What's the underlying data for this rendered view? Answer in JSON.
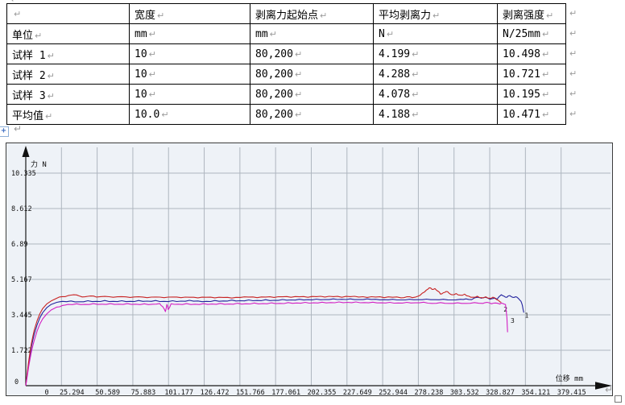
{
  "marks": {
    "pilcrow": "↵",
    "table_handle": "+"
  },
  "table": {
    "paragraph_mark": "↵",
    "headers": [
      "",
      "宽度",
      "剥离力起始点",
      "平均剥离力",
      "剥离强度"
    ],
    "rows": [
      [
        "单位",
        "mm",
        "mm",
        "N",
        "N/25mm"
      ],
      [
        "试样 1",
        "10",
        "80,200",
        "4.199",
        "10.498"
      ],
      [
        "试样 2",
        "10",
        "80,200",
        "4.288",
        "10.721"
      ],
      [
        "试样 3",
        "10",
        "80,200",
        "4.078",
        "10.195"
      ],
      [
        "平均值",
        "10.0",
        "80,200",
        "4.188",
        "10.471"
      ]
    ]
  },
  "chart_data": {
    "type": "line",
    "title": "",
    "xlabel": "位移 mm",
    "ylabel": "力 N",
    "grid": true,
    "legend_position": "none",
    "bg_color": "#eef2f7",
    "grid_color": "#aeb6bf",
    "axis_color": "#1a1a1a",
    "xlim": [
      0,
      396
    ],
    "ylim": [
      0,
      11.2
    ],
    "x_ticks": [
      0,
      25.294,
      50.589,
      75.883,
      101.177,
      126.472,
      151.766,
      177.061,
      202.355,
      227.649,
      252.944,
      278.238,
      303.532,
      328.827,
      354.121,
      379.415
    ],
    "x_tick_labels": [
      "0",
      "25.294",
      "50.589",
      "75.883",
      "101.177",
      "126.472",
      "151.766",
      "177.061",
      "202.355",
      "227.649",
      "252.944",
      "278.238",
      "303.532",
      "328.827",
      "354.121",
      "379.415"
    ],
    "y_ticks": [
      0,
      1.722,
      3.445,
      5.167,
      6.89,
      8.612,
      10.335
    ],
    "y_tick_labels": [
      "0",
      "1.722",
      "3.445",
      "5.167",
      "6.89",
      "8.612",
      "10.335"
    ],
    "series": [
      {
        "name": "试样 1",
        "color": "#23239e",
        "end_label": "1",
        "end_label_xy": [
          355,
          3.3
        ],
        "points": [
          [
            0,
            0
          ],
          [
            1,
            0.55
          ],
          [
            2,
            1.05
          ],
          [
            3,
            1.5
          ],
          [
            4,
            1.9
          ],
          [
            5,
            2.22
          ],
          [
            6,
            2.5
          ],
          [
            8,
            2.95
          ],
          [
            10,
            3.3
          ],
          [
            12,
            3.55
          ],
          [
            15,
            3.8
          ],
          [
            18,
            3.95
          ],
          [
            22,
            4.05
          ],
          [
            26,
            4.1
          ],
          [
            32,
            4.12
          ],
          [
            38,
            4.08
          ],
          [
            44,
            4.13
          ],
          [
            50,
            4.1
          ],
          [
            56,
            4.14
          ],
          [
            62,
            4.1
          ],
          [
            68,
            4.13
          ],
          [
            74,
            4.1
          ],
          [
            80,
            4.14
          ],
          [
            86,
            4.11
          ],
          [
            92,
            4.14
          ],
          [
            98,
            4.1
          ],
          [
            104,
            4.13
          ],
          [
            110,
            4.11
          ],
          [
            116,
            4.15
          ],
          [
            122,
            4.12
          ],
          [
            128,
            4.1
          ],
          [
            134,
            4.14
          ],
          [
            140,
            4.12
          ],
          [
            146,
            4.16
          ],
          [
            152,
            4.13
          ],
          [
            158,
            4.17
          ],
          [
            164,
            4.14
          ],
          [
            170,
            4.18
          ],
          [
            176,
            4.15
          ],
          [
            182,
            4.19
          ],
          [
            188,
            4.17
          ],
          [
            194,
            4.2
          ],
          [
            200,
            4.18
          ],
          [
            206,
            4.21
          ],
          [
            212,
            4.19
          ],
          [
            218,
            4.22
          ],
          [
            224,
            4.2
          ],
          [
            230,
            4.22
          ],
          [
            236,
            4.19
          ],
          [
            242,
            4.22
          ],
          [
            248,
            4.2
          ],
          [
            254,
            4.18
          ],
          [
            260,
            4.2
          ],
          [
            266,
            4.17
          ],
          [
            272,
            4.2
          ],
          [
            278,
            4.18
          ],
          [
            284,
            4.21
          ],
          [
            290,
            4.18
          ],
          [
            296,
            4.2
          ],
          [
            302,
            4.17
          ],
          [
            308,
            4.2
          ],
          [
            312,
            4.22
          ],
          [
            316,
            4.18
          ],
          [
            320,
            4.3
          ],
          [
            323,
            4.25
          ],
          [
            326,
            4.3
          ],
          [
            329,
            4.2
          ],
          [
            332,
            4.25
          ],
          [
            334,
            4.2
          ],
          [
            337,
            4.42
          ],
          [
            339,
            4.35
          ],
          [
            341,
            4.3
          ],
          [
            343,
            4.38
          ],
          [
            345,
            4.3
          ],
          [
            347,
            4.32
          ],
          [
            349,
            4.25
          ],
          [
            351,
            4.1
          ],
          [
            352,
            3.9
          ],
          [
            353,
            3.55
          ]
        ]
      },
      {
        "name": "试样 2",
        "color": "#c82323",
        "end_label": "2",
        "end_label_xy": [
          340,
          3.6
        ],
        "points": [
          [
            0,
            0
          ],
          [
            1,
            0.6
          ],
          [
            2,
            1.15
          ],
          [
            3,
            1.65
          ],
          [
            4,
            2.05
          ],
          [
            5,
            2.4
          ],
          [
            6,
            2.7
          ],
          [
            8,
            3.15
          ],
          [
            10,
            3.5
          ],
          [
            12,
            3.75
          ],
          [
            15,
            3.98
          ],
          [
            18,
            4.12
          ],
          [
            22,
            4.25
          ],
          [
            26,
            4.33
          ],
          [
            30,
            4.38
          ],
          [
            34,
            4.42
          ],
          [
            38,
            4.36
          ],
          [
            42,
            4.32
          ],
          [
            46,
            4.36
          ],
          [
            50,
            4.31
          ],
          [
            56,
            4.34
          ],
          [
            62,
            4.3
          ],
          [
            68,
            4.33
          ],
          [
            74,
            4.29
          ],
          [
            80,
            4.32
          ],
          [
            86,
            4.28
          ],
          [
            92,
            4.31
          ],
          [
            98,
            4.28
          ],
          [
            104,
            4.31
          ],
          [
            110,
            4.28
          ],
          [
            116,
            4.3
          ],
          [
            122,
            4.27
          ],
          [
            128,
            4.3
          ],
          [
            134,
            4.27
          ],
          [
            140,
            4.29
          ],
          [
            146,
            4.26
          ],
          [
            152,
            4.29
          ],
          [
            158,
            4.31
          ],
          [
            164,
            4.28
          ],
          [
            170,
            4.31
          ],
          [
            176,
            4.29
          ],
          [
            182,
            4.32
          ],
          [
            188,
            4.3
          ],
          [
            194,
            4.32
          ],
          [
            200,
            4.3
          ],
          [
            206,
            4.33
          ],
          [
            212,
            4.31
          ],
          [
            218,
            4.33
          ],
          [
            224,
            4.3
          ],
          [
            230,
            4.33
          ],
          [
            236,
            4.31
          ],
          [
            242,
            4.29
          ],
          [
            248,
            4.31
          ],
          [
            254,
            4.28
          ],
          [
            260,
            4.3
          ],
          [
            266,
            4.27
          ],
          [
            270,
            4.32
          ],
          [
            274,
            4.28
          ],
          [
            278,
            4.35
          ],
          [
            281,
            4.5
          ],
          [
            284,
            4.65
          ],
          [
            286,
            4.76
          ],
          [
            288,
            4.68
          ],
          [
            290,
            4.72
          ],
          [
            292,
            4.6
          ],
          [
            294,
            4.45
          ],
          [
            296,
            4.52
          ],
          [
            298,
            4.58
          ],
          [
            300,
            4.5
          ],
          [
            302,
            4.42
          ],
          [
            305,
            4.48
          ],
          [
            308,
            4.4
          ],
          [
            311,
            4.45
          ],
          [
            314,
            4.35
          ],
          [
            317,
            4.3
          ],
          [
            320,
            4.35
          ],
          [
            323,
            4.28
          ],
          [
            326,
            4.32
          ],
          [
            329,
            4.25
          ],
          [
            331,
            4.3
          ],
          [
            333,
            4.22
          ],
          [
            335,
            4.15
          ],
          [
            337,
            4.05
          ]
        ]
      },
      {
        "name": "试样 3",
        "color": "#d21fc3",
        "end_label": "3",
        "end_label_xy": [
          345,
          3.05
        ],
        "points": [
          [
            0,
            0
          ],
          [
            1,
            0.45
          ],
          [
            2,
            0.9
          ],
          [
            3,
            1.3
          ],
          [
            4,
            1.65
          ],
          [
            5,
            1.95
          ],
          [
            6,
            2.2
          ],
          [
            8,
            2.65
          ],
          [
            10,
            3.0
          ],
          [
            12,
            3.25
          ],
          [
            15,
            3.5
          ],
          [
            18,
            3.68
          ],
          [
            22,
            3.82
          ],
          [
            26,
            3.9
          ],
          [
            30,
            3.95
          ],
          [
            36,
            3.98
          ],
          [
            42,
            3.95
          ],
          [
            48,
            3.99
          ],
          [
            54,
            3.96
          ],
          [
            60,
            3.99
          ],
          [
            66,
            3.96
          ],
          [
            72,
            3.99
          ],
          [
            78,
            3.96
          ],
          [
            84,
            3.98
          ],
          [
            90,
            3.96
          ],
          [
            95,
            3.99
          ],
          [
            97,
            3.85
          ],
          [
            99,
            3.6
          ],
          [
            100,
            3.95
          ],
          [
            101,
            3.7
          ],
          [
            103,
            3.98
          ],
          [
            108,
            3.96
          ],
          [
            114,
            3.99
          ],
          [
            120,
            3.96
          ],
          [
            126,
            3.99
          ],
          [
            132,
            3.97
          ],
          [
            138,
            4.0
          ],
          [
            144,
            3.97
          ],
          [
            150,
            4.01
          ],
          [
            156,
            3.98
          ],
          [
            162,
            4.02
          ],
          [
            168,
            3.99
          ],
          [
            174,
            4.03
          ],
          [
            180,
            4.0
          ],
          [
            186,
            4.04
          ],
          [
            192,
            4.02
          ],
          [
            198,
            4.05
          ],
          [
            204,
            4.03
          ],
          [
            210,
            4.06
          ],
          [
            216,
            4.04
          ],
          [
            222,
            4.07
          ],
          [
            228,
            4.05
          ],
          [
            234,
            4.07
          ],
          [
            240,
            4.04
          ],
          [
            246,
            4.06
          ],
          [
            252,
            4.03
          ],
          [
            258,
            4.05
          ],
          [
            264,
            4.02
          ],
          [
            270,
            4.05
          ],
          [
            276,
            4.03
          ],
          [
            282,
            4.06
          ],
          [
            288,
            4.0
          ],
          [
            294,
            4.04
          ],
          [
            300,
            4.0
          ],
          [
            306,
            4.03
          ],
          [
            312,
            4.0
          ],
          [
            318,
            4.04
          ],
          [
            324,
            4.0
          ],
          [
            327,
            4.05
          ],
          [
            330,
            3.98
          ],
          [
            333,
            4.02
          ],
          [
            336,
            3.97
          ],
          [
            338,
            4.0
          ],
          [
            340,
            3.95
          ],
          [
            341,
            3.3
          ],
          [
            341.5,
            2.6
          ]
        ]
      }
    ]
  }
}
